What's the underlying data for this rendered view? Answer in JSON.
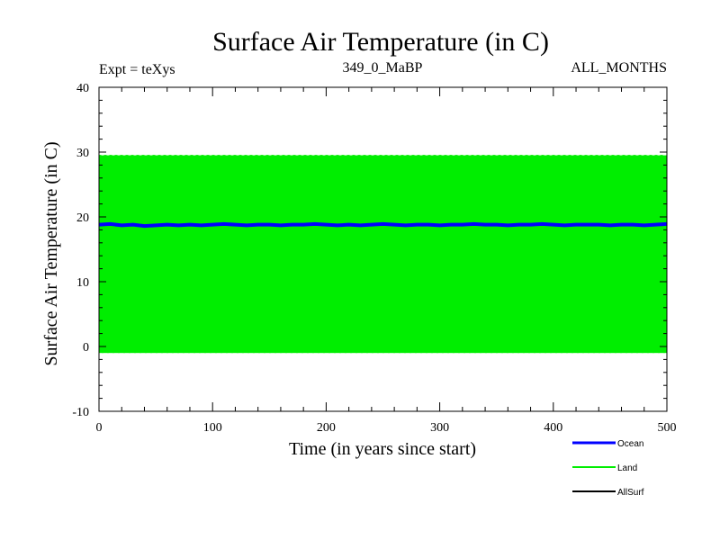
{
  "chart_data": {
    "type": "line",
    "title": "Surface Air Temperature (in C)",
    "header_left": "Expt = teXys",
    "header_center": "349_0_MaBP",
    "header_right": "ALL_MONTHS",
    "xlabel": "Time (in years since start)",
    "ylabel": "Surface Air Temperature (in C)",
    "xlim": [
      0,
      500
    ],
    "ylim": [
      -10,
      40
    ],
    "x_ticks": [
      0,
      100,
      200,
      300,
      400,
      500
    ],
    "y_ticks": [
      -10,
      0,
      10,
      20,
      30,
      40
    ],
    "grid": false,
    "legend_position": "bottom-right",
    "series": [
      {
        "name": "Ocean",
        "color": "#0000ff",
        "x": [
          0,
          10,
          20,
          30,
          40,
          50,
          60,
          70,
          80,
          90,
          100,
          110,
          120,
          130,
          140,
          150,
          160,
          170,
          180,
          190,
          200,
          210,
          220,
          230,
          240,
          250,
          260,
          270,
          280,
          290,
          300,
          310,
          320,
          330,
          340,
          350,
          360,
          370,
          380,
          390,
          400,
          410,
          420,
          430,
          440,
          450,
          460,
          470,
          480,
          490,
          500
        ],
        "values": [
          18.8,
          18.9,
          18.7,
          18.8,
          18.6,
          18.7,
          18.8,
          18.7,
          18.8,
          18.7,
          18.8,
          18.9,
          18.8,
          18.7,
          18.8,
          18.8,
          18.7,
          18.8,
          18.8,
          18.9,
          18.8,
          18.7,
          18.8,
          18.7,
          18.8,
          18.9,
          18.8,
          18.7,
          18.8,
          18.8,
          18.7,
          18.8,
          18.8,
          18.9,
          18.8,
          18.8,
          18.7,
          18.8,
          18.8,
          18.9,
          18.8,
          18.7,
          18.8,
          18.8,
          18.8,
          18.7,
          18.8,
          18.8,
          18.7,
          18.8,
          18.9
        ]
      },
      {
        "name": "Land",
        "color": "#00ee00",
        "x": [
          0,
          500
        ],
        "values_min": [
          -1.0,
          -1.0
        ],
        "values_max": [
          29.5,
          29.5
        ],
        "note_shown": "seasonal oscillation between about -1 and 29.5 each year"
      },
      {
        "name": "AllSurf",
        "color": "#000000",
        "x": [],
        "values": []
      }
    ]
  }
}
